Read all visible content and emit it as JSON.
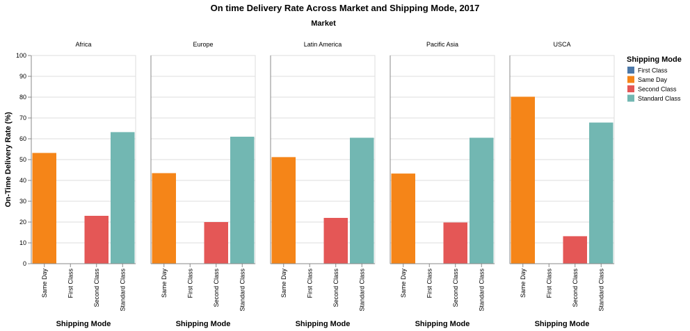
{
  "chart_data": {
    "type": "bar",
    "title": "On time Delivery Rate Across Market and Shipping Mode, 2017",
    "facet_title": "Market",
    "xlabel": "Shipping Mode",
    "ylabel": "On-Time Delivery Rate (%)",
    "ylim": [
      0,
      100
    ],
    "yticks": [
      0,
      10,
      20,
      30,
      40,
      50,
      60,
      70,
      80,
      90,
      100
    ],
    "grid": true,
    "legend_title": "Shipping Mode",
    "legend_position": "right",
    "legend": [
      "First Class",
      "Same Day",
      "Second Class",
      "Standard Class"
    ],
    "colors": {
      "First Class": "#4c78a8",
      "Same Day": "#f58518",
      "Second Class": "#e45756",
      "Standard Class": "#72b7b2"
    },
    "categories": [
      "Same Day",
      "First Class",
      "Second Class",
      "Standard Class"
    ],
    "facets": [
      {
        "market": "Africa",
        "values": [
          53.2,
          0,
          23.0,
          63.2
        ]
      },
      {
        "market": "Europe",
        "values": [
          43.5,
          0,
          20.0,
          61.0
        ]
      },
      {
        "market": "Latin America",
        "values": [
          51.2,
          0,
          22.0,
          60.5
        ]
      },
      {
        "market": "Pacific Asia",
        "values": [
          43.3,
          0,
          19.8,
          60.5
        ]
      },
      {
        "market": "USCA",
        "values": [
          80.2,
          0,
          13.2,
          67.8
        ]
      }
    ]
  }
}
